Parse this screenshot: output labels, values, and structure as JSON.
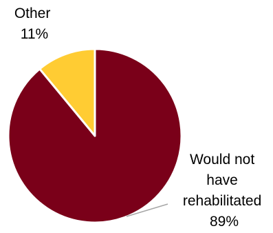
{
  "chart_data": {
    "type": "pie",
    "start_angle_deg": 0,
    "direction": "clockwise",
    "slices": [
      {
        "label": "Would not have rehabilitated",
        "label_lines": [
          "Would not",
          "have",
          "rehabilitated"
        ],
        "value": 89,
        "value_label": "89%",
        "color": "#7a0019"
      },
      {
        "label": "Other",
        "label_lines": [
          "Other"
        ],
        "value": 11,
        "value_label": "11%",
        "color": "#ffcc33"
      }
    ],
    "slice_border_color": "#ffffff",
    "leader_line_color": "#a6a6a6",
    "legend": "none"
  }
}
